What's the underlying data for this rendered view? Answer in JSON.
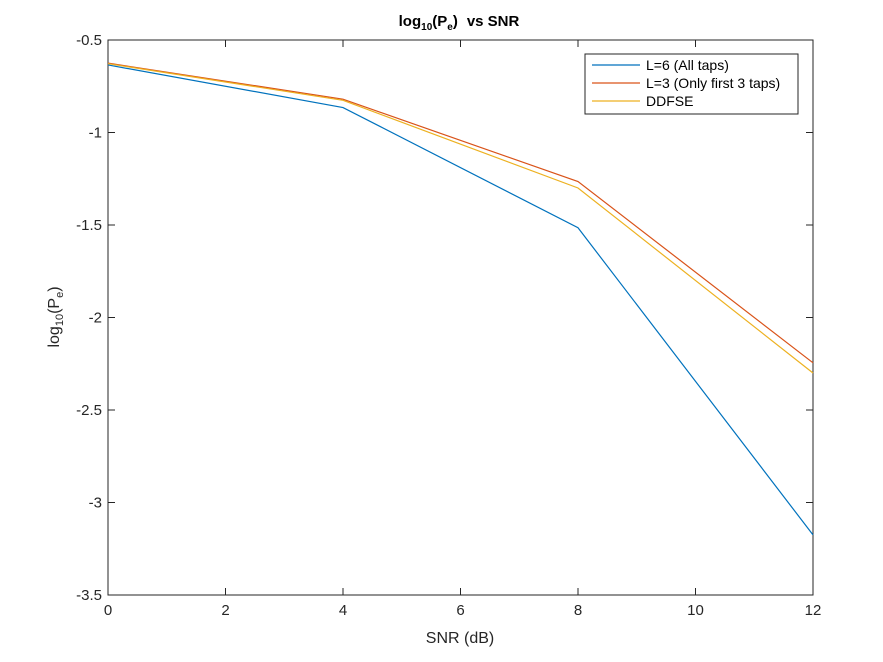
{
  "chart_data": {
    "type": "line",
    "title": {
      "base": "log",
      "base_sub": "10",
      "p_open": "(P",
      "p_sub": "e",
      "p_close": ")",
      "rest": "vs  SNR"
    },
    "xlabel": "SNR (dB)",
    "ylabel": {
      "base": "log",
      "base_sub": "10",
      "p_open": "(P",
      "p_sub": "e",
      "p_close": ")"
    },
    "xlim": [
      0,
      12
    ],
    "ylim": [
      -3.5,
      -0.5
    ],
    "xticks": [
      0,
      2,
      4,
      6,
      8,
      10,
      12
    ],
    "xtick_labels": [
      "0",
      "2",
      "4",
      "6",
      "8",
      "10",
      "12"
    ],
    "yticks": [
      -3.5,
      -3,
      -2.5,
      -2,
      -1.5,
      -1,
      -0.5
    ],
    "ytick_labels": [
      "-3.5",
      "-3",
      "-2.5",
      "-2",
      "-1.5",
      "-1",
      "-0.5"
    ],
    "grid": false,
    "legend_position": "top-right",
    "x": [
      0,
      4,
      8,
      12
    ],
    "series": [
      {
        "name": "L=6 (All taps)",
        "color": "#0072BD",
        "values": [
          -0.635,
          -0.865,
          -1.515,
          -3.175
        ]
      },
      {
        "name": "L=3 (Only first 3 taps)",
        "color": "#D95319",
        "values": [
          -0.625,
          -0.82,
          -1.265,
          -2.245
        ]
      },
      {
        "name": "DDFSE",
        "color": "#EDB120",
        "values": [
          -0.628,
          -0.826,
          -1.3,
          -2.3
        ]
      }
    ]
  }
}
